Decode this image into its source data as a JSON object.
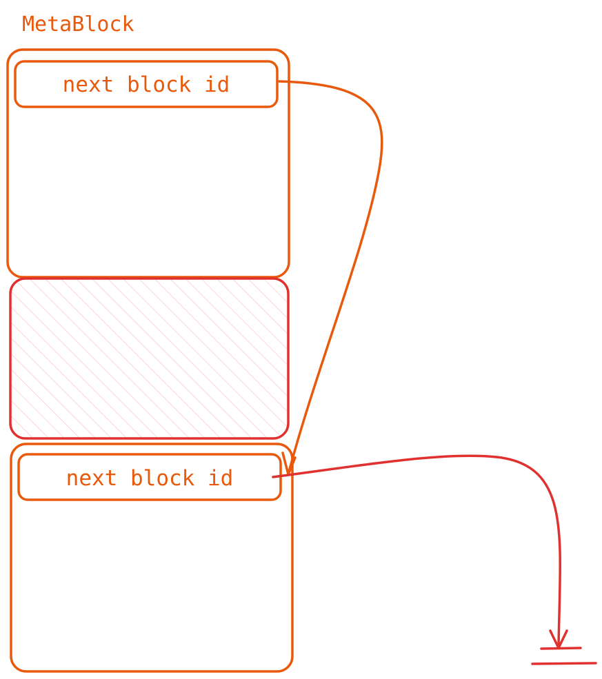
{
  "title": "MetaBlock",
  "blocks": [
    {
      "field_label": "next block id"
    },
    {
      "field_label": "next block id"
    }
  ],
  "colors": {
    "block_stroke": "#e8590c",
    "label_text": "#e8590c",
    "freed_block_stroke": "#e03131",
    "freed_block_hatch": "#ffc9c9",
    "terminal_arrow": "#e03131"
  },
  "icons": {
    "end_marker": "ground-terminator-icon"
  }
}
